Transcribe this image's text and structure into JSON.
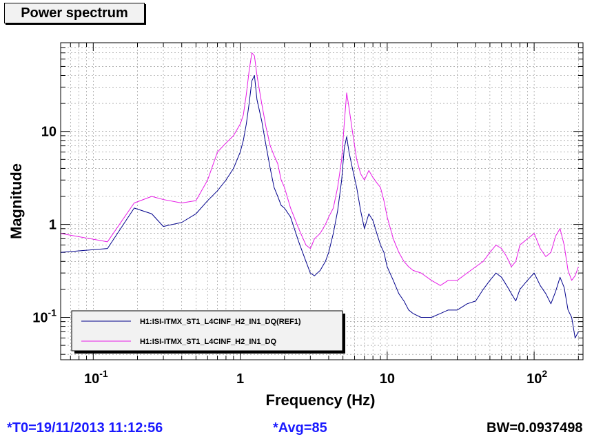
{
  "title": "Power spectrum",
  "footer": {
    "t0": "*T0=19/11/2013 11:12:56",
    "avg": "*Avg=85",
    "bw": "BW=0.0937498"
  },
  "colors": {
    "ref": "#00008b",
    "live": "#e619e6",
    "grid": "#888888",
    "footer_blue": "#1a1aff"
  },
  "chart_data": {
    "type": "line",
    "xlabel": "Frequency (Hz)",
    "ylabel": "Magnitude",
    "xscale": "log",
    "yscale": "log",
    "xlim": [
      0.06,
      215
    ],
    "ylim": [
      0.035,
      90
    ],
    "grid": true,
    "legend_position": "bottom-left",
    "xticks": [
      {
        "value": 0.1,
        "base": "10",
        "exp": "-1"
      },
      {
        "value": 1,
        "base": "1",
        "exp": ""
      },
      {
        "value": 10,
        "base": "10",
        "exp": ""
      },
      {
        "value": 100,
        "base": "10",
        "exp": "2"
      }
    ],
    "yticks": [
      {
        "value": 0.1,
        "base": "10",
        "exp": "-1"
      },
      {
        "value": 1,
        "base": "1",
        "exp": ""
      },
      {
        "value": 10,
        "base": "10",
        "exp": ""
      }
    ],
    "series": [
      {
        "name": "H1:ISI-ITMX_ST1_L4CINF_H2_IN1_DQ(REF1)",
        "color": "#00008b",
        "x": [
          0.06,
          0.125,
          0.19,
          0.25,
          0.3,
          0.4,
          0.5,
          0.6,
          0.7,
          0.8,
          0.9,
          1.0,
          1.05,
          1.1,
          1.15,
          1.2,
          1.25,
          1.3,
          1.4,
          1.5,
          1.6,
          1.7,
          1.8,
          1.9,
          2.0,
          2.2,
          2.5,
          2.8,
          3.0,
          3.2,
          3.5,
          3.8,
          4.0,
          4.3,
          4.6,
          4.9,
          5.1,
          5.3,
          5.5,
          5.8,
          6.2,
          6.6,
          7.0,
          7.5,
          8.0,
          8.5,
          9.0,
          9.5,
          10,
          11,
          12,
          13,
          14,
          15,
          17,
          20,
          23,
          26,
          30,
          35,
          40,
          45,
          50,
          55,
          60,
          65,
          70,
          75,
          80,
          90,
          100,
          110,
          120,
          130,
          140,
          150,
          160,
          170,
          180,
          190,
          200
        ],
        "y": [
          0.5,
          0.55,
          1.5,
          1.3,
          0.95,
          1.05,
          1.3,
          1.8,
          2.3,
          3.0,
          4.0,
          6.0,
          8.0,
          12,
          20,
          35,
          40,
          22,
          13,
          7.0,
          4.0,
          2.5,
          2.0,
          1.6,
          1.5,
          1.2,
          0.65,
          0.4,
          0.3,
          0.28,
          0.32,
          0.4,
          0.5,
          0.8,
          1.4,
          3.0,
          6.5,
          8.8,
          6.0,
          4.0,
          2.5,
          1.4,
          0.9,
          1.3,
          1.1,
          0.8,
          0.6,
          0.5,
          0.35,
          0.25,
          0.18,
          0.15,
          0.12,
          0.11,
          0.1,
          0.1,
          0.11,
          0.12,
          0.12,
          0.14,
          0.15,
          0.2,
          0.25,
          0.3,
          0.27,
          0.22,
          0.18,
          0.15,
          0.2,
          0.25,
          0.3,
          0.22,
          0.18,
          0.14,
          0.19,
          0.27,
          0.21,
          0.12,
          0.1,
          0.06,
          0.07
        ]
      },
      {
        "name": "H1:ISI-ITMX_ST1_L4CINF_H2_IN1_DQ",
        "color": "#e619e6",
        "x": [
          0.06,
          0.125,
          0.19,
          0.25,
          0.3,
          0.4,
          0.5,
          0.6,
          0.7,
          0.8,
          0.9,
          1.0,
          1.05,
          1.1,
          1.15,
          1.2,
          1.25,
          1.3,
          1.4,
          1.5,
          1.6,
          1.7,
          1.8,
          1.9,
          2.0,
          2.2,
          2.5,
          2.8,
          3.0,
          3.2,
          3.5,
          3.8,
          4.0,
          4.3,
          4.6,
          4.9,
          5.1,
          5.3,
          5.5,
          5.8,
          6.2,
          6.6,
          7.0,
          7.5,
          8.0,
          8.5,
          9.0,
          9.5,
          10,
          11,
          12,
          13,
          14,
          15,
          17,
          20,
          23,
          26,
          30,
          35,
          40,
          45,
          50,
          55,
          60,
          65,
          70,
          75,
          80,
          90,
          100,
          110,
          120,
          130,
          140,
          150,
          160,
          170,
          180,
          190,
          200
        ],
        "y": [
          0.8,
          0.65,
          1.7,
          2.0,
          1.85,
          1.7,
          1.8,
          3.0,
          6.0,
          7.5,
          9.0,
          12,
          15,
          25,
          45,
          70,
          65,
          40,
          20,
          11,
          7.0,
          5.5,
          4.5,
          3.0,
          2.5,
          1.5,
          0.9,
          0.6,
          0.55,
          0.7,
          0.8,
          1.0,
          1.2,
          1.5,
          2.5,
          5.0,
          12,
          26,
          18,
          10,
          5.0,
          3.5,
          3.0,
          3.8,
          3.2,
          2.8,
          2.5,
          1.8,
          1.2,
          0.7,
          0.5,
          0.4,
          0.35,
          0.32,
          0.3,
          0.25,
          0.22,
          0.25,
          0.25,
          0.3,
          0.35,
          0.4,
          0.5,
          0.6,
          0.55,
          0.45,
          0.35,
          0.4,
          0.6,
          0.7,
          0.8,
          0.55,
          0.45,
          0.5,
          0.75,
          0.9,
          0.6,
          0.32,
          0.25,
          0.28,
          0.35
        ]
      }
    ]
  }
}
